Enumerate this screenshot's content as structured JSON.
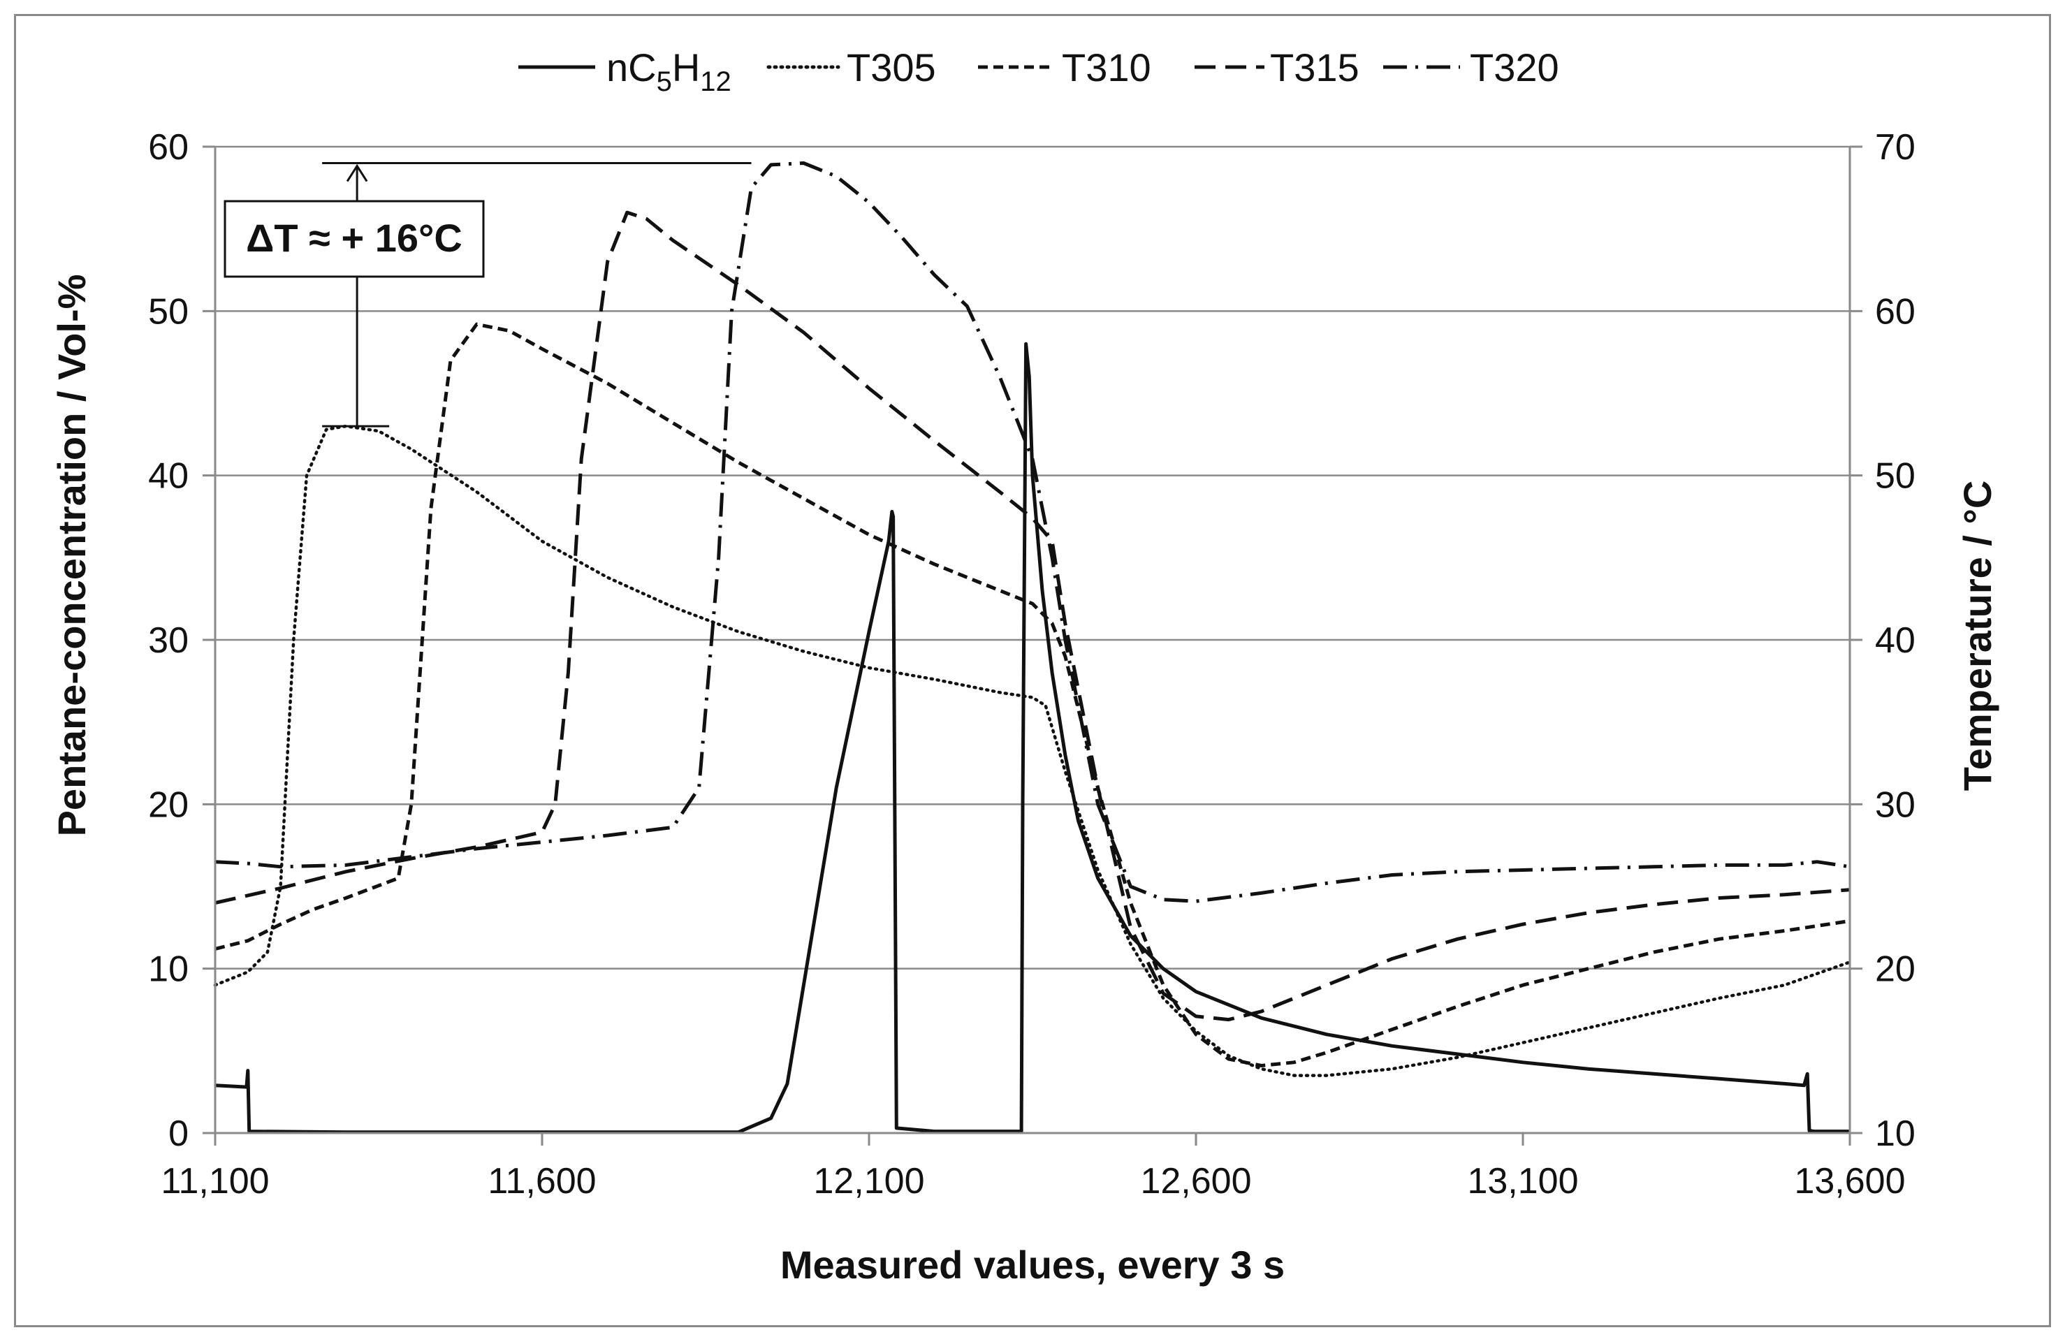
{
  "chart_data": {
    "type": "line",
    "title": "",
    "xlabel": "Measured  values, every 3 s",
    "ylabel": "Pentane-concentration  /  Vol-%",
    "y2label": "Temperature  / °C",
    "xlim": [
      11100,
      13600
    ],
    "ylim": [
      0,
      60
    ],
    "y2lim": [
      10,
      70
    ],
    "x_ticks": [
      11100,
      11600,
      12100,
      12600,
      13100,
      13600
    ],
    "x_tick_labels": [
      "11,100",
      "11,600",
      "12,100",
      "12,600",
      "13,100",
      "13,600"
    ],
    "y_ticks": [
      0,
      10,
      20,
      30,
      40,
      50,
      60
    ],
    "y_tick_labels": [
      "0",
      "10",
      "20",
      "30",
      "40",
      "50",
      "60"
    ],
    "y2_ticks": [
      10,
      20,
      30,
      40,
      50,
      60,
      70
    ],
    "y2_tick_labels": [
      "10",
      "20",
      "30",
      "40",
      "50",
      "60",
      "70"
    ],
    "grid": true,
    "legend_position": "top",
    "legend": [
      {
        "key": "nC5H12",
        "base": "nC",
        "sub1": "5",
        "mid": "H",
        "sub2": "12",
        "style": "solid"
      },
      {
        "key": "T305",
        "label": "T305",
        "style": "dotted"
      },
      {
        "key": "T310",
        "label": "T310",
        "style": "short-dash"
      },
      {
        "key": "T315",
        "label": "T315",
        "style": "long-dash"
      },
      {
        "key": "T320",
        "label": "T320",
        "style": "dash-dot"
      }
    ],
    "annotation": {
      "text": "ΔT ≈ + 16°C",
      "from_temp": 53,
      "to_temp": 69,
      "x_start": 11270,
      "x_end": 11920
    },
    "series": [
      {
        "name": "nC5H12",
        "axis": "left",
        "style": "solid",
        "x": [
          11100,
          11148,
          11150,
          11152,
          11300,
          11600,
          11900,
          11950,
          11975,
          12000,
          12050,
          12100,
          12130,
          12135,
          12137,
          12142,
          12200,
          12333,
          12335,
          12340,
          12345,
          12350,
          12365,
          12380,
          12400,
          12420,
          12450,
          12500,
          12550,
          12600,
          12700,
          12800,
          12900,
          13000,
          13100,
          13200,
          13300,
          13400,
          13500,
          13530,
          13535,
          13538,
          13545,
          13600
        ],
        "y": [
          2.9,
          2.8,
          3.8,
          0.1,
          0.05,
          0.05,
          0.05,
          0.9,
          3.0,
          9.0,
          21.0,
          30.5,
          36.0,
          37.8,
          37.5,
          0.3,
          0.1,
          0.1,
          20.0,
          48.0,
          46.0,
          40.0,
          33.0,
          28.0,
          23.0,
          19.0,
          15.5,
          12.0,
          10.0,
          8.6,
          7.0,
          6.0,
          5.3,
          4.8,
          4.3,
          3.9,
          3.6,
          3.3,
          3.0,
          2.9,
          3.6,
          0.15,
          0.1,
          0.1
        ]
      },
      {
        "name": "T305",
        "axis": "right",
        "style": "dotted",
        "x": [
          11100,
          11150,
          11180,
          11200,
          11220,
          11240,
          11270,
          11300,
          11350,
          11400,
          11500,
          11600,
          11700,
          11800,
          11900,
          12000,
          12100,
          12200,
          12300,
          12350,
          12370,
          12400,
          12450,
          12500,
          12550,
          12600,
          12650,
          12700,
          12750,
          12800,
          12900,
          13000,
          13100,
          13200,
          13300,
          13400,
          13500,
          13600
        ],
        "y": [
          19.0,
          19.8,
          21.0,
          25.0,
          40.0,
          50.0,
          52.8,
          53.0,
          52.7,
          51.6,
          49.0,
          46.0,
          43.8,
          42.0,
          40.5,
          39.3,
          38.3,
          37.6,
          36.8,
          36.5,
          36.0,
          32.0,
          26.0,
          21.5,
          18.2,
          16.2,
          14.7,
          13.9,
          13.5,
          13.5,
          13.9,
          14.6,
          15.5,
          16.4,
          17.3,
          18.2,
          19.0,
          20.4
        ]
      },
      {
        "name": "T310",
        "axis": "right",
        "style": "short-dash",
        "x": [
          11100,
          11150,
          11200,
          11250,
          11300,
          11380,
          11400,
          11430,
          11460,
          11500,
          11550,
          11600,
          11700,
          11800,
          11900,
          12000,
          12100,
          12200,
          12300,
          12350,
          12380,
          12400,
          12450,
          12500,
          12550,
          12600,
          12650,
          12700,
          12750,
          12800,
          12900,
          13000,
          13100,
          13200,
          13300,
          13400,
          13500,
          13600
        ],
        "y": [
          21.2,
          21.7,
          22.7,
          23.6,
          24.3,
          25.5,
          30.0,
          48.0,
          57.0,
          59.2,
          58.8,
          57.7,
          55.6,
          53.2,
          50.8,
          48.6,
          46.4,
          44.6,
          43.0,
          42.2,
          41.0,
          39.0,
          31.0,
          24.0,
          19.0,
          16.0,
          14.5,
          14.1,
          14.3,
          14.9,
          16.3,
          17.7,
          19.0,
          20.0,
          21.0,
          21.8,
          22.3,
          22.9
        ]
      },
      {
        "name": "T315",
        "axis": "right",
        "style": "long-dash",
        "x": [
          11100,
          11200,
          11300,
          11400,
          11500,
          11600,
          11620,
          11640,
          11660,
          11700,
          11730,
          11760,
          11800,
          11900,
          12000,
          12100,
          12200,
          12300,
          12350,
          12380,
          12400,
          12450,
          12500,
          12550,
          12600,
          12650,
          12700,
          12800,
          12900,
          13000,
          13100,
          13200,
          13300,
          13400,
          13500,
          13600
        ],
        "y": [
          24.0,
          24.9,
          25.9,
          26.7,
          27.4,
          28.3,
          30.0,
          38.0,
          51.0,
          63.0,
          66.0,
          65.6,
          64.3,
          61.6,
          58.7,
          55.3,
          52.1,
          49.0,
          47.4,
          46.0,
          41.0,
          31.0,
          22.5,
          18.5,
          17.1,
          16.9,
          17.4,
          19.0,
          20.6,
          21.8,
          22.7,
          23.4,
          23.9,
          24.3,
          24.5,
          24.8
        ]
      },
      {
        "name": "T320",
        "axis": "right",
        "style": "dash-dot",
        "x": [
          11100,
          11150,
          11200,
          11300,
          11400,
          11500,
          11600,
          11700,
          11800,
          11840,
          11870,
          11890,
          11920,
          11950,
          12000,
          12050,
          12100,
          12150,
          12200,
          12250,
          12300,
          12350,
          12380,
          12400,
          12450,
          12500,
          12550,
          12600,
          12700,
          12800,
          12900,
          13000,
          13100,
          13200,
          13300,
          13400,
          13500,
          13550,
          13600
        ],
        "y": [
          26.5,
          26.4,
          26.2,
          26.3,
          26.8,
          27.3,
          27.7,
          28.1,
          28.6,
          31.0,
          45.0,
          60.0,
          67.5,
          68.9,
          69.0,
          68.2,
          66.6,
          64.5,
          62.2,
          60.3,
          56.0,
          51.0,
          45.0,
          40.0,
          30.0,
          25.0,
          24.2,
          24.1,
          24.6,
          25.2,
          25.7,
          25.9,
          26.0,
          26.1,
          26.2,
          26.3,
          26.3,
          26.5,
          26.2
        ]
      }
    ]
  }
}
